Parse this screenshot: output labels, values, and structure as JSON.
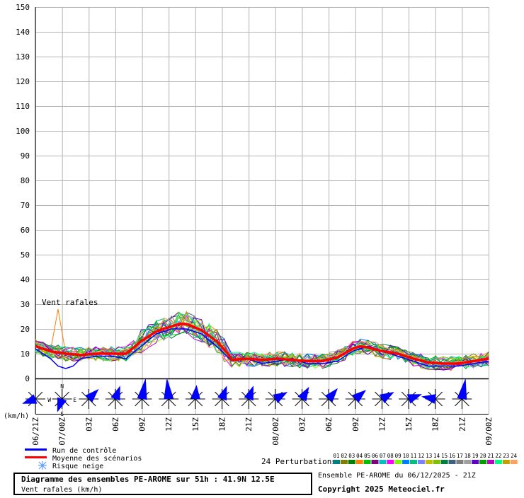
{
  "chart_data": {
    "type": "line",
    "y_ticks": [
      "0",
      "10",
      "20",
      "30",
      "40",
      "50",
      "60",
      "70",
      "80",
      "90",
      "100",
      "110",
      "120",
      "130",
      "140",
      "150"
    ],
    "ylim": [
      0,
      150
    ],
    "unit_label": "(km/h)",
    "series_annotation": "Vent rafales",
    "x_ticks": [
      "06/21Z",
      "07/00Z",
      "03Z",
      "06Z",
      "09Z",
      "12Z",
      "15Z",
      "18Z",
      "21Z",
      "08/00Z",
      "03Z",
      "06Z",
      "09Z",
      "12Z",
      "15Z",
      "18Z",
      "21Z",
      "09/00Z"
    ],
    "x_hours": [
      0,
      51
    ],
    "grid": true,
    "mean": {
      "name": "Moyenne des scénarios",
      "color": "#ff0000",
      "points": [
        [
          0,
          13
        ],
        [
          2,
          11
        ],
        [
          4,
          10
        ],
        [
          6,
          9.5
        ],
        [
          8,
          10
        ],
        [
          10,
          10
        ],
        [
          12,
          10
        ],
        [
          14,
          15
        ],
        [
          16,
          19
        ],
        [
          18,
          21
        ],
        [
          19,
          22
        ],
        [
          20,
          22
        ],
        [
          22,
          19.5
        ],
        [
          24,
          15
        ],
        [
          25.5,
          10
        ],
        [
          26,
          7.5
        ],
        [
          28,
          8
        ],
        [
          30,
          7.5
        ],
        [
          32,
          8
        ],
        [
          34,
          7.5
        ],
        [
          36,
          7
        ],
        [
          38,
          7
        ],
        [
          40,
          8.5
        ],
        [
          42,
          12
        ],
        [
          43,
          13
        ],
        [
          44,
          12.5
        ],
        [
          46,
          11
        ],
        [
          48,
          10
        ],
        [
          50,
          8
        ],
        [
          52,
          6.5
        ],
        [
          54,
          6
        ],
        [
          56,
          6
        ],
        [
          58,
          7
        ],
        [
          60,
          8
        ]
      ]
    },
    "control": {
      "name": "Run de contrôle",
      "color": "#0000ff",
      "points": [
        [
          0,
          12
        ],
        [
          2,
          8
        ],
        [
          3,
          5
        ],
        [
          4,
          4
        ],
        [
          5,
          5
        ],
        [
          6,
          8
        ],
        [
          8,
          9
        ],
        [
          10,
          9
        ],
        [
          12,
          8
        ],
        [
          14,
          13
        ],
        [
          16,
          18
        ],
        [
          18,
          20
        ],
        [
          20,
          20
        ],
        [
          22,
          18
        ],
        [
          24,
          13
        ],
        [
          26,
          7
        ],
        [
          28,
          8
        ],
        [
          30,
          6
        ],
        [
          32,
          7
        ],
        [
          34,
          8
        ],
        [
          36,
          6
        ],
        [
          38,
          6
        ],
        [
          40,
          7
        ],
        [
          42,
          11
        ],
        [
          44,
          13
        ],
        [
          46,
          11
        ],
        [
          48,
          9
        ],
        [
          50,
          7
        ],
        [
          52,
          5
        ],
        [
          54,
          5
        ],
        [
          56,
          5
        ],
        [
          58,
          6
        ],
        [
          60,
          7
        ]
      ]
    },
    "members_count": 24,
    "member_colors": [
      "#008080",
      "#808000",
      "#008000",
      "#ff8000",
      "#00c000",
      "#800080",
      "#00c0c0",
      "#ff00ff",
      "#80ff00",
      "#0080ff",
      "#00c080",
      "#8080ff",
      "#c0c000",
      "#80c000",
      "#008040",
      "#406080",
      "#808080",
      "#a0a0a0",
      "#6000c0",
      "#00a000",
      "#c000c0",
      "#00ff80",
      "#c0a000",
      "#ffa060"
    ],
    "extra_peak": {
      "x": 3,
      "y": 28
    }
  },
  "wind_rose": {
    "n": "N",
    "e": "E",
    "s": "S",
    "w": "W"
  },
  "legend": {
    "control_label": "Run de contrôle",
    "mean_label": "Moyenne des scénarios",
    "snow_label": "Risque neige",
    "snow_icon": "snowflake-icon",
    "perturbations_label": "24 Perturbations",
    "member_numbers": [
      "01",
      "02",
      "03",
      "04",
      "05",
      "06",
      "07",
      "08",
      "09",
      "10",
      "11",
      "12",
      "13",
      "14",
      "15",
      "16",
      "17",
      "18",
      "19",
      "20",
      "21",
      "22",
      "23",
      "24"
    ]
  },
  "footer": {
    "title": "Diagramme des ensembles PE-AROME sur 51h : 41.9N 12.5E",
    "subtitle": "Vent rafales (km/h)",
    "ensemble": "Ensemble PE-AROME du 06/12/2025 - 21Z",
    "copyright": "Copyright 2025 Meteociel.fr"
  }
}
